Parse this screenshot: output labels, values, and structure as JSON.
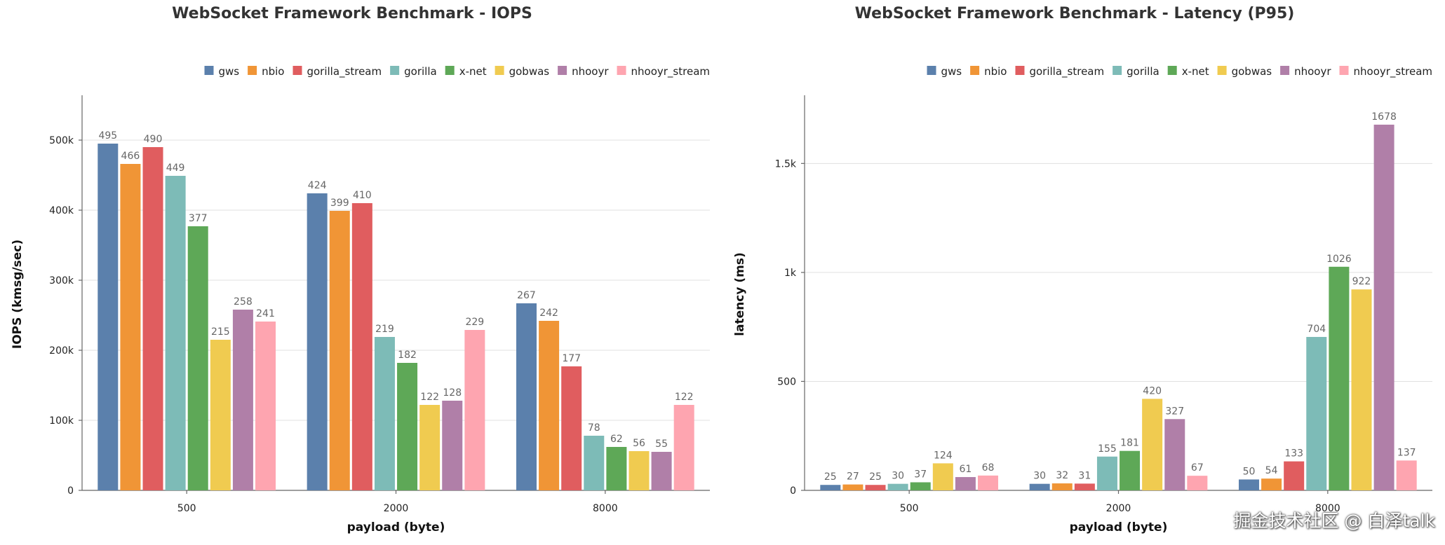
{
  "colors": {
    "gws": "#5b80ac",
    "nbio": "#f09536",
    "gorilla_stream": "#e05d5f",
    "gorilla": "#7dbbb7",
    "x-net": "#5ea857",
    "gobwas": "#f0cb50",
    "nhooyr": "#b07fa8",
    "nhooyr_stream": "#fea5b0"
  },
  "watermark": "掘金技术社区 @ 白泽talk",
  "chart_data": [
    {
      "type": "bar",
      "title": "WebSocket Framework Benchmark - IOPS",
      "xlabel": "payload (byte)",
      "ylabel": "IOPS (kmsg/sec)",
      "categories": [
        "500",
        "2000",
        "8000"
      ],
      "ylim": [
        0,
        560
      ],
      "yticks": [
        0,
        100,
        200,
        300,
        400,
        500
      ],
      "ytick_labels": [
        "0",
        "100k",
        "200k",
        "300k",
        "400k",
        "500k"
      ],
      "legend": "top-right",
      "series": [
        {
          "name": "gws",
          "values": [
            495,
            424,
            267
          ]
        },
        {
          "name": "nbio",
          "values": [
            466,
            399,
            242
          ]
        },
        {
          "name": "gorilla_stream",
          "values": [
            490,
            410,
            177
          ]
        },
        {
          "name": "gorilla",
          "values": [
            449,
            219,
            78
          ]
        },
        {
          "name": "x-net",
          "values": [
            377,
            182,
            62
          ]
        },
        {
          "name": "gobwas",
          "values": [
            215,
            122,
            56
          ]
        },
        {
          "name": "nhooyr",
          "values": [
            258,
            128,
            55
          ]
        },
        {
          "name": "nhooyr_stream",
          "values": [
            241,
            229,
            122
          ]
        }
      ]
    },
    {
      "type": "bar",
      "title": "WebSocket Framework Benchmark - Latency (P95)",
      "xlabel": "payload (byte)",
      "ylabel": "latency (ms)",
      "categories": [
        "500",
        "2000",
        "8000"
      ],
      "ylim": [
        0,
        1800
      ],
      "yticks": [
        0,
        500,
        1000,
        1500
      ],
      "ytick_labels": [
        "0",
        "500",
        "1k",
        "1.5k"
      ],
      "legend": "top-right",
      "series": [
        {
          "name": "gws",
          "values": [
            25,
            30,
            50
          ]
        },
        {
          "name": "nbio",
          "values": [
            27,
            32,
            54
          ]
        },
        {
          "name": "gorilla_stream",
          "values": [
            25,
            31,
            133
          ]
        },
        {
          "name": "gorilla",
          "values": [
            30,
            155,
            704
          ]
        },
        {
          "name": "x-net",
          "values": [
            37,
            181,
            1026
          ]
        },
        {
          "name": "gobwas",
          "values": [
            124,
            420,
            922
          ]
        },
        {
          "name": "nhooyr",
          "values": [
            61,
            327,
            1678
          ]
        },
        {
          "name": "nhooyr_stream",
          "values": [
            68,
            67,
            137
          ]
        }
      ]
    }
  ]
}
